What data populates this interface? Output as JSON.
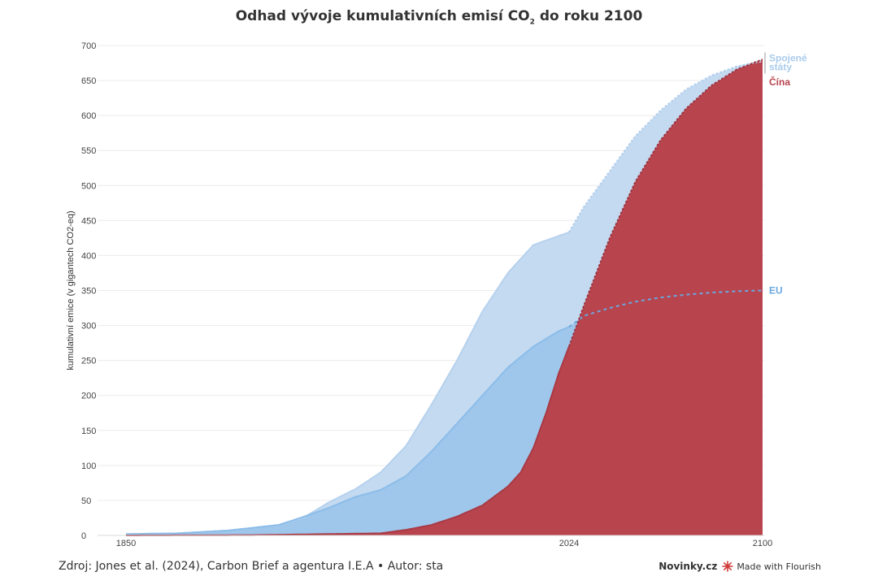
{
  "title": {
    "prefix": "Odhad vývoje kumulativních emisí CO",
    "subscript": "2",
    "suffix": " do roku 2100"
  },
  "footer": {
    "source": "Zdroj: Jones et al. (2024), Carbon Brief a agentura I.E.A • Autor: sta",
    "portal": "Novinky.cz",
    "made_with": "Made with Flourish"
  },
  "chart_data": {
    "type": "area",
    "title": "Odhad vývoje kumulativních emisí CO2 do roku 2100",
    "ylabel": "kumulativní emice (v gigantech CO2-eq)",
    "ylim": [
      0,
      700
    ],
    "xlim": [
      1850,
      2100
    ],
    "y_ticks": [
      0,
      50,
      100,
      150,
      200,
      250,
      300,
      350,
      400,
      450,
      500,
      550,
      600,
      650,
      700
    ],
    "x_ticks": [
      "1850",
      "2024",
      "2100"
    ],
    "grid": true,
    "series": [
      {
        "name": "Spojené státy",
        "color": "#a9cbec",
        "projection_from": 2024,
        "x": [
          1850,
          1870,
          1890,
          1910,
          1920,
          1930,
          1940,
          1950,
          1960,
          1970,
          1980,
          1990,
          2000,
          2010,
          2020,
          2024,
          2030,
          2040,
          2050,
          2060,
          2070,
          2080,
          2090,
          2100
        ],
        "values": [
          2,
          3,
          7,
          15,
          26,
          48,
          66,
          90,
          128,
          187,
          250,
          320,
          375,
          415,
          428,
          433,
          470,
          520,
          570,
          607,
          637,
          657,
          670,
          678
        ]
      },
      {
        "name": "EU",
        "color": "#8bbde9",
        "projection_from": 2024,
        "x": [
          1850,
          1870,
          1890,
          1910,
          1920,
          1930,
          1940,
          1950,
          1960,
          1970,
          1980,
          1990,
          2000,
          2010,
          2020,
          2024,
          2030,
          2040,
          2050,
          2060,
          2070,
          2080,
          2090,
          2100
        ],
        "values": [
          2,
          3,
          7,
          15,
          27,
          40,
          55,
          65,
          85,
          120,
          160,
          200,
          240,
          270,
          292,
          298,
          314,
          325,
          334,
          340,
          344,
          347,
          349,
          350
        ]
      },
      {
        "name": "Čína",
        "color": "#b8444e",
        "projection_from": 2024,
        "x": [
          1850,
          1900,
          1950,
          1960,
          1970,
          1980,
          1990,
          2000,
          2005,
          2010,
          2015,
          2020,
          2024,
          2030,
          2040,
          2050,
          2060,
          2070,
          2080,
          2090,
          2100
        ],
        "values": [
          0,
          0.5,
          3,
          8,
          15,
          27,
          43,
          70,
          90,
          125,
          175,
          232,
          270,
          330,
          425,
          505,
          565,
          610,
          643,
          666,
          680
        ]
      }
    ],
    "legend": [
      {
        "label": "Spojené státy",
        "color": "#a9cbec",
        "y_value": 668
      },
      {
        "label": "Čína",
        "color": "#b8444e",
        "y_value": 657
      },
      {
        "label": "EU",
        "color": "#6aa9e0",
        "y_value": 350
      }
    ]
  }
}
